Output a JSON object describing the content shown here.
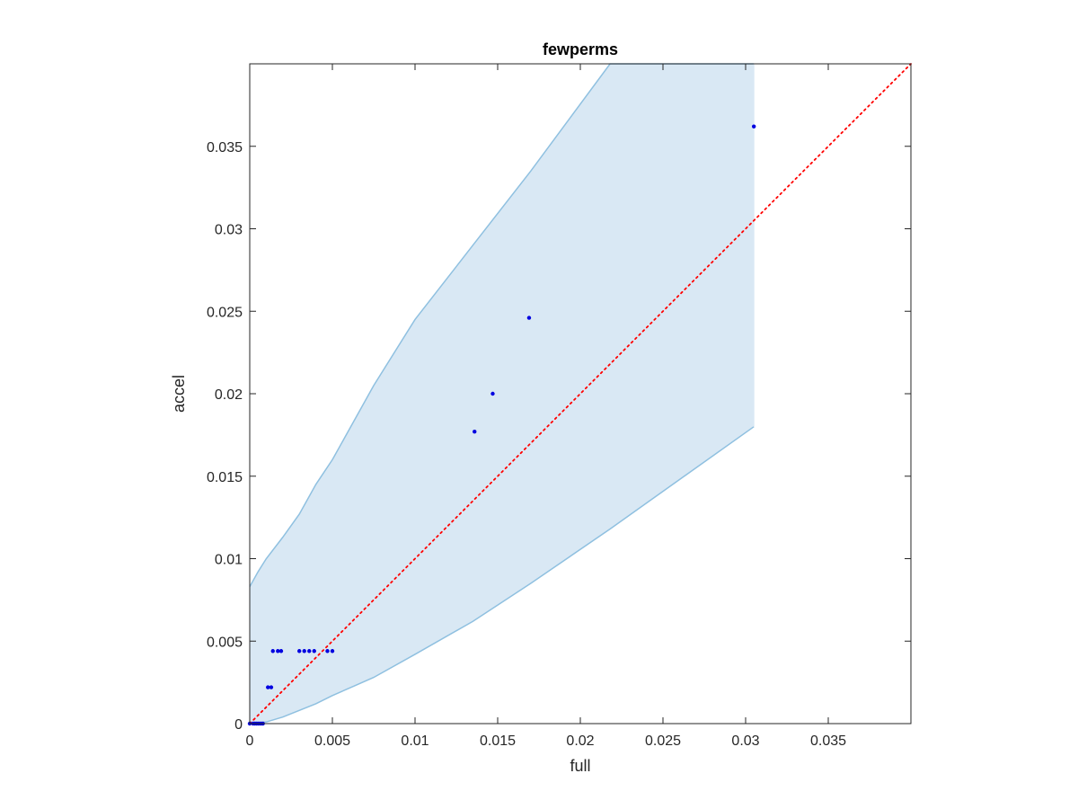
{
  "chart_data": {
    "type": "scatter",
    "title": "fewperms",
    "xlabel": "full",
    "ylabel": "accel",
    "xlim": [
      0,
      0.04
    ],
    "ylim": [
      0,
      0.04
    ],
    "xticks": [
      0,
      0.005,
      0.01,
      0.015,
      0.02,
      0.025,
      0.03,
      0.035
    ],
    "yticks": [
      0,
      0.005,
      0.01,
      0.015,
      0.02,
      0.025,
      0.03,
      0.035
    ],
    "xtick_labels": [
      "0",
      "0.005",
      "0.01",
      "0.015",
      "0.02",
      "0.025",
      "0.03",
      "0.035"
    ],
    "ytick_labels": [
      "0",
      "0.005",
      "0.01",
      "0.015",
      "0.02",
      "0.025",
      "0.03",
      "0.035"
    ],
    "grid": false,
    "points": {
      "x": [
        0.0,
        0.0002,
        0.0003,
        0.0004,
        0.0005,
        0.0006,
        0.0007,
        0.0008,
        0.0011,
        0.0013,
        0.0014,
        0.0017,
        0.0019,
        0.003,
        0.0033,
        0.0036,
        0.0039,
        0.0047,
        0.005,
        0.0136,
        0.0147,
        0.0169,
        0.0305
      ],
      "y": [
        0.0,
        0.0,
        0.0,
        0.0,
        0.0,
        0.0,
        0.0,
        0.0,
        0.0022,
        0.0022,
        0.0044,
        0.0044,
        0.0044,
        0.0044,
        0.0044,
        0.0044,
        0.0044,
        0.0044,
        0.0044,
        0.0177,
        0.02,
        0.0246,
        0.0362
      ],
      "color": "#0000e0"
    },
    "band": {
      "x": [
        0,
        0.0005,
        0.001,
        0.002,
        0.003,
        0.004,
        0.005,
        0.0075,
        0.01,
        0.0135,
        0.017,
        0.0218,
        0.0305
      ],
      "upper": [
        0.0083,
        0.0092,
        0.01,
        0.0113,
        0.0127,
        0.0145,
        0.016,
        0.0205,
        0.0245,
        0.029,
        0.0335,
        0.04,
        0.04
      ],
      "lower": [
        0,
        5e-05,
        0.0001,
        0.0004,
        0.0008,
        0.0012,
        0.0017,
        0.0028,
        0.0042,
        0.0062,
        0.0085,
        0.0118,
        0.018
      ],
      "fill_color": "#d9e8f4",
      "edge_color": "#8fc0e0"
    },
    "reference_line": {
      "x": [
        0,
        0.04
      ],
      "y": [
        0,
        0.04
      ],
      "color": "#ff0000",
      "style": "dotted"
    }
  }
}
